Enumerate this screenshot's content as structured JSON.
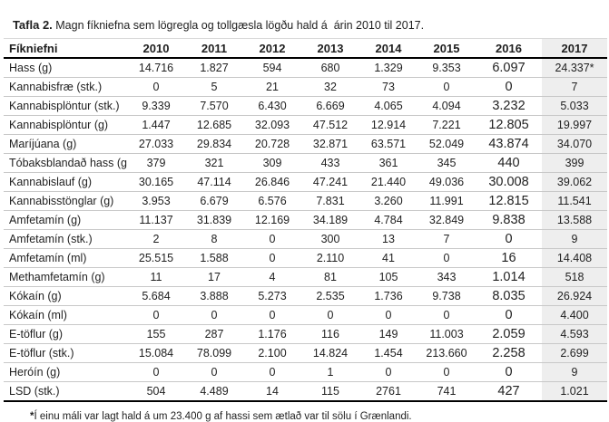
{
  "title": {
    "label": "Tafla 2.",
    "text": " Magn fíkniefna sem lögregla og tollgæsla lögðu hald á  árin 2010 til 2017."
  },
  "table": {
    "columns": [
      "Fíkniefni",
      "2010",
      "2011",
      "2012",
      "2013",
      "2014",
      "2015",
      "2016",
      "2017"
    ],
    "highlighted_column": "2017",
    "highlight_color": "#eeeeee",
    "rows": [
      {
        "label": "Hass (g)",
        "values": [
          "14.716",
          "1.827",
          "594",
          "680",
          "1.329",
          "9.353",
          "6.097",
          "24.337*"
        ]
      },
      {
        "label": "Kannabisfræ (stk.)",
        "values": [
          "0",
          "5",
          "21",
          "32",
          "73",
          "0",
          "0",
          "7"
        ]
      },
      {
        "label": "Kannabisplöntur (stk.)",
        "values": [
          "9.339",
          "7.570",
          "6.430",
          "6.669",
          "4.065",
          "4.094",
          "3.232",
          "5.033"
        ]
      },
      {
        "label": "Kannabisplöntur (g)",
        "values": [
          "1.447",
          "12.685",
          "32.093",
          "47.512",
          "12.914",
          "7.221",
          "12.805",
          "19.997"
        ]
      },
      {
        "label": "Maríjúana (g)",
        "values": [
          "27.033",
          "29.834",
          "20.728",
          "32.871",
          "63.571",
          "52.049",
          "43.874",
          "34.070"
        ]
      },
      {
        "label": "Tóbaksblandað hass (g)",
        "values": [
          "379",
          "321",
          "309",
          "433",
          "361",
          "345",
          "440",
          "399"
        ]
      },
      {
        "label": "Kannabislauf (g)",
        "values": [
          "30.165",
          "47.114",
          "26.846",
          "47.241",
          "21.440",
          "49.036",
          "30.008",
          "39.062"
        ]
      },
      {
        "label": "Kannabisstönglar (g)",
        "values": [
          "3.953",
          "6.679",
          "6.576",
          "7.831",
          "3.260",
          "11.991",
          "12.815",
          "11.541"
        ]
      },
      {
        "label": "Amfetamín (g)",
        "values": [
          "11.137",
          "31.839",
          "12.169",
          "34.189",
          "4.784",
          "32.849",
          "9.838",
          "13.588"
        ]
      },
      {
        "label": "Amfetamín (stk.)",
        "values": [
          "2",
          "8",
          "0",
          "300",
          "13",
          "7",
          "0",
          "9"
        ]
      },
      {
        "label": "Amfetamín (ml)",
        "values": [
          "25.515",
          "1.588",
          "0",
          "2.110",
          "41",
          "0",
          "16",
          "14.408"
        ]
      },
      {
        "label": "Methamfetamín (g)",
        "values": [
          "11",
          "17",
          "4",
          "81",
          "105",
          "343",
          "1.014",
          "518"
        ]
      },
      {
        "label": "Kókaín (g)",
        "values": [
          "5.684",
          "3.888",
          "5.273",
          "2.535",
          "1.736",
          "9.738",
          "8.035",
          "26.924"
        ]
      },
      {
        "label": "Kókaín (ml)",
        "values": [
          "0",
          "0",
          "0",
          "0",
          "0",
          "0",
          "0",
          "4.400"
        ]
      },
      {
        "label": "E-töflur (g)",
        "values": [
          "155",
          "287",
          "1.176",
          "116",
          "149",
          "11.003",
          "2.059",
          "4.593"
        ]
      },
      {
        "label": "E-töflur (stk.)",
        "values": [
          "15.084",
          "78.099",
          "2.100",
          "14.824",
          "1.454",
          "213.660",
          "2.258",
          "2.699"
        ]
      },
      {
        "label": "Heróín (g)",
        "values": [
          "0",
          "0",
          "0",
          "1",
          "0",
          "0",
          "0",
          "9"
        ]
      },
      {
        "label": "LSD (stk.)",
        "values": [
          "504",
          "4.489",
          "14",
          "115",
          "2761",
          "741",
          "427",
          "1.021"
        ]
      }
    ]
  },
  "footnote": {
    "marker": "*",
    "text": "Í einu máli var lagt hald á um 23.400 g af hassi sem ætlað var til sölu í Grænlandi."
  }
}
